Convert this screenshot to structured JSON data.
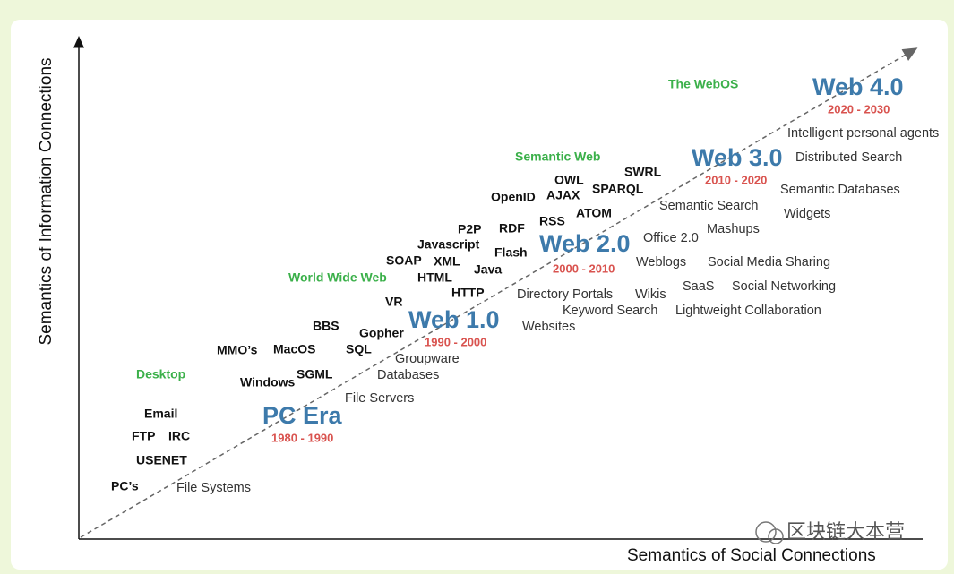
{
  "axes": {
    "y_label": "Semantics of Information Connections",
    "x_label": "Semantics of Social Connections"
  },
  "eras": [
    {
      "name": "PC Era",
      "years": "1980 - 1990"
    },
    {
      "name": "Web 1.0",
      "years": "1990 - 2000"
    },
    {
      "name": "Web 2.0",
      "years": "2000 - 2010"
    },
    {
      "name": "Web 3.0",
      "years": "2010 - 2020"
    },
    {
      "name": "Web 4.0",
      "years": "2020 - 2030"
    }
  ],
  "categories": [
    "Desktop",
    "World Wide Web",
    "Semantic Web",
    "The WebOS"
  ],
  "terms": [
    "Email",
    "FTP",
    "IRC",
    "USENET",
    "PC’s",
    "MMO’s",
    "MacOS",
    "BBS",
    "Windows",
    "SGML",
    "SQL",
    "Gopher",
    "VR",
    "SOAP",
    "HTML",
    "XML",
    "Javascript",
    "P2P",
    "HTTP",
    "Java",
    "RDF",
    "Flash",
    "OpenID",
    "RSS",
    "AJAX",
    "OWL",
    "ATOM",
    "SPARQL",
    "SWRL"
  ],
  "descriptions": [
    "File Systems",
    "File Servers",
    "Databases",
    "Groupware",
    "Websites",
    "Keyword Search",
    "Directory Portals",
    "Wikis",
    "Weblogs",
    "Office 2.0",
    "Semantic Search",
    "Mashups",
    "Social Media Sharing",
    "SaaS",
    "Social Networking",
    "Lightweight Collaboration",
    "Semantic Databases",
    "Widgets",
    "Distributed Search",
    "Intelligent personal agents"
  ],
  "watermark": "区块链大本营"
}
